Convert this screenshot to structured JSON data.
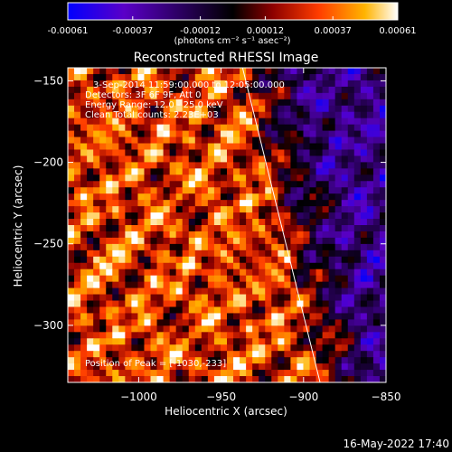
{
  "chart_data": {
    "type": "heatmap",
    "title": "Reconstructed RHESSI Image",
    "xlabel": "Heliocentric X (arcsec)",
    "ylabel": "Heliocentric Y (arcsec)",
    "xlim": [
      -1043,
      -850
    ],
    "ylim": [
      -335,
      -142
    ],
    "x_ticks": [
      -1000,
      -950,
      -900,
      -850
    ],
    "x_tick_labels": [
      "−1000",
      "−950",
      "−900",
      "−850"
    ],
    "y_ticks": [
      -300,
      -250,
      -200,
      -150
    ],
    "y_tick_labels": [
      "−300",
      "−250",
      "−200",
      "−150"
    ],
    "colorbar": {
      "min": -0.00061,
      "max": 0.00061,
      "ticks": [
        -0.00061,
        -0.00037,
        -0.00012,
        0.00012,
        0.00037,
        0.00061
      ],
      "tick_labels": [
        "-0.00061",
        "-0.00037",
        "-0.00012",
        "0.00012",
        "0.00037",
        "0.00061"
      ],
      "units_label": "(photons cm⁻² s⁻¹ asec⁻²)",
      "colormap": [
        "#0000ff",
        "#5a00c8",
        "#000000",
        "#8c0000",
        "#ff3c00",
        "#ffb400",
        "#ffffff"
      ]
    },
    "annotations": [
      "3-Sep-2014 11:59:00.000 to 12:05:00.000",
      "Detectors: 3F 6F 9F, Att 0",
      "Energy Range: 12.0 - 25.0 keV",
      "Clean    Total counts: 2.23E+03"
    ],
    "peak_label": "Position of Peak = [-1030,-233]",
    "peak_position": [
      -1030,
      -233
    ],
    "limb_line": [
      [
        -937,
        -142
      ],
      [
        -890,
        -335
      ]
    ],
    "grid": false,
    "legend": "none"
  },
  "footer": {
    "timestamp": "16-May-2022 17:40"
  }
}
